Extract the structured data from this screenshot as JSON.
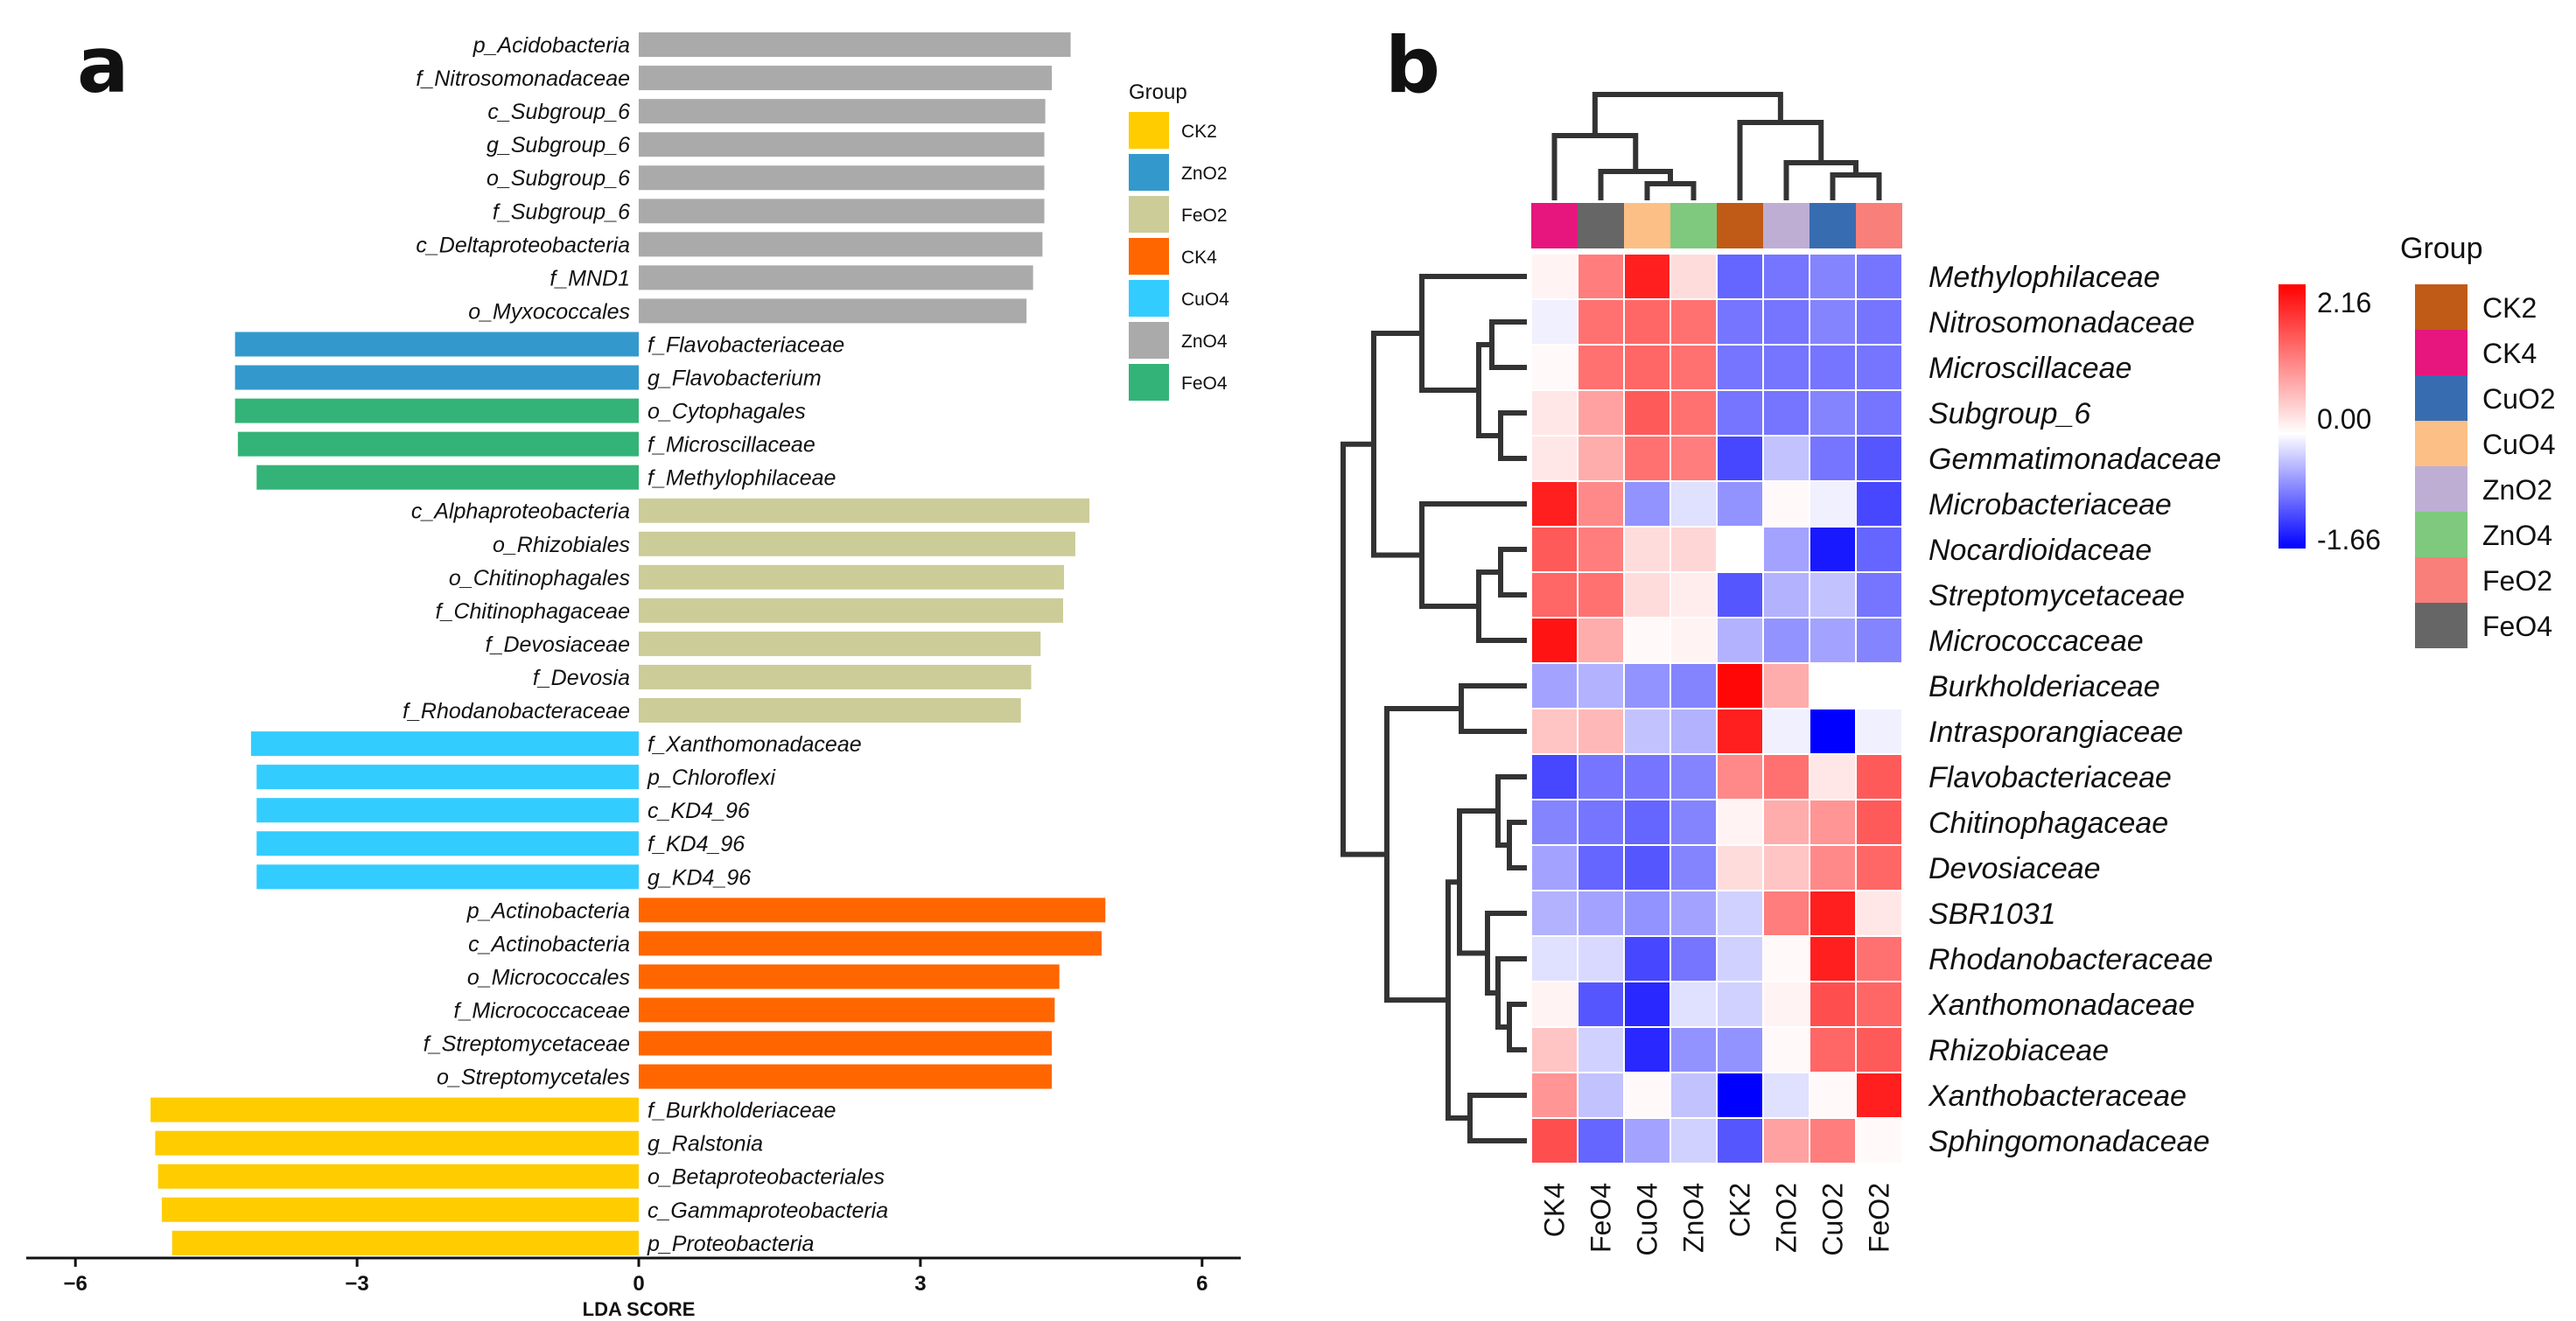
{
  "chart_data": [
    {
      "panel": "a",
      "type": "bar",
      "orientation": "horizontal",
      "xlabel": "LDA SCORE",
      "xlim": [
        -6,
        6.4
      ],
      "xticks": [
        -6,
        -3,
        0,
        3,
        6
      ],
      "xtick_labels": [
        "−6",
        "−3",
        "0",
        "3",
        "6"
      ],
      "legend": {
        "title": "Group",
        "position": "right",
        "items": [
          {
            "name": "CK2",
            "color": "#FFCC00"
          },
          {
            "name": "ZnO2",
            "color": "#3399CC"
          },
          {
            "name": "FeO2",
            "color": "#CCCC99"
          },
          {
            "name": "CK4",
            "color": "#FF6600"
          },
          {
            "name": "CuO4",
            "color": "#33CCFF"
          },
          {
            "name": "ZnO4",
            "color": "#AAAAAA"
          },
          {
            "name": "FeO4",
            "color": "#33B377"
          }
        ]
      },
      "bars": [
        {
          "label": "p_Acidobacteria",
          "value": 4.6,
          "group": "ZnO4"
        },
        {
          "label": "f_Nitrosomonadaceae",
          "value": 4.4,
          "group": "ZnO4"
        },
        {
          "label": "c_Subgroup_6",
          "value": 4.33,
          "group": "ZnO4"
        },
        {
          "label": "g_Subgroup_6",
          "value": 4.32,
          "group": "ZnO4"
        },
        {
          "label": "o_Subgroup_6",
          "value": 4.32,
          "group": "ZnO4"
        },
        {
          "label": "f_Subgroup_6",
          "value": 4.32,
          "group": "ZnO4"
        },
        {
          "label": "c_Deltaproteobacteria",
          "value": 4.3,
          "group": "ZnO4"
        },
        {
          "label": "f_MND1",
          "value": 4.2,
          "group": "ZnO4"
        },
        {
          "label": "o_Myxococcales",
          "value": 4.13,
          "group": "ZnO4"
        },
        {
          "label": "f_Flavobacteriaceae",
          "value": -4.3,
          "group": "ZnO2"
        },
        {
          "label": "g_Flavobacterium",
          "value": -4.3,
          "group": "ZnO2"
        },
        {
          "label": "o_Cytophagales",
          "value": -4.3,
          "group": "FeO4"
        },
        {
          "label": "f_Microscillaceae",
          "value": -4.27,
          "group": "FeO4"
        },
        {
          "label": "f_Methylophilaceae",
          "value": -4.07,
          "group": "FeO4"
        },
        {
          "label": "c_Alphaproteobacteria",
          "value": 4.8,
          "group": "FeO2"
        },
        {
          "label": "o_Rhizobiales",
          "value": 4.65,
          "group": "FeO2"
        },
        {
          "label": "o_Chitinophagales",
          "value": 4.53,
          "group": "FeO2"
        },
        {
          "label": "f_Chitinophagaceae",
          "value": 4.52,
          "group": "FeO2"
        },
        {
          "label": "f_Devosiaceae",
          "value": 4.28,
          "group": "FeO2"
        },
        {
          "label": "f_Devosia",
          "value": 4.18,
          "group": "FeO2"
        },
        {
          "label": "f_Rhodanobacteraceae",
          "value": 4.07,
          "group": "FeO2"
        },
        {
          "label": "f_Xanthomonadaceae",
          "value": -4.13,
          "group": "CuO4"
        },
        {
          "label": "p_Chloroflexi",
          "value": -4.07,
          "group": "CuO4"
        },
        {
          "label": "c_KD4_96",
          "value": -4.07,
          "group": "CuO4"
        },
        {
          "label": "f_KD4_96",
          "value": -4.07,
          "group": "CuO4"
        },
        {
          "label": "g_KD4_96",
          "value": -4.07,
          "group": "CuO4"
        },
        {
          "label": "p_Actinobacteria",
          "value": 4.97,
          "group": "CK4"
        },
        {
          "label": "c_Actinobacteria",
          "value": 4.93,
          "group": "CK4"
        },
        {
          "label": "o_Micrococcales",
          "value": 4.48,
          "group": "CK4"
        },
        {
          "label": "f_Micrococcaceae",
          "value": 4.43,
          "group": "CK4"
        },
        {
          "label": "f_Streptomycetaceae",
          "value": 4.4,
          "group": "CK4"
        },
        {
          "label": "o_Streptomycetales",
          "value": 4.4,
          "group": "CK4"
        },
        {
          "label": "f_Burkholderiaceae",
          "value": -5.2,
          "group": "CK2"
        },
        {
          "label": "g_Ralstonia",
          "value": -5.15,
          "group": "CK2"
        },
        {
          "label": "o_Betaproteobacteriales",
          "value": -5.12,
          "group": "CK2"
        },
        {
          "label": "c_Gammaproteobacteria",
          "value": -5.08,
          "group": "CK2"
        },
        {
          "label": "p_Proteobacteria",
          "value": -4.97,
          "group": "CK2"
        }
      ]
    },
    {
      "panel": "b",
      "type": "heatmap",
      "columns": [
        "CK4",
        "FeO4",
        "CuO4",
        "ZnO4",
        "CK2",
        "ZnO2",
        "CuO2",
        "FeO2"
      ],
      "rows": [
        "Methylophilaceae",
        "Nitrosomonadaceae",
        "Microscillaceae",
        "Subgroup_6",
        "Gemmatimonadaceae",
        "Microbacteriaceae",
        "Nocardioidaceae",
        "Streptomycetaceae",
        "Micrococcaceae",
        "Burkholderiaceae",
        "Intrasporangiaceae",
        "Flavobacteriaceae",
        "Chitinophagaceae",
        "Devosiaceae",
        "SBR1031",
        "Rhodanobacteraceae",
        "Xanthomonadaceae",
        "Rhizobiaceae",
        "Xanthobacteraceae",
        "Sphingomonadaceae"
      ],
      "values": [
        [
          0.1,
          1.1,
          1.9,
          0.3,
          -1.0,
          -0.9,
          -0.8,
          -0.9
        ],
        [
          -0.1,
          1.2,
          1.3,
          1.2,
          -0.9,
          -0.9,
          -0.8,
          -0.9
        ],
        [
          0.05,
          1.2,
          1.3,
          1.2,
          -0.9,
          -0.9,
          -0.9,
          -0.9
        ],
        [
          0.2,
          0.8,
          1.4,
          1.2,
          -0.9,
          -0.9,
          -0.8,
          -0.9
        ],
        [
          0.2,
          0.7,
          1.2,
          1.1,
          -1.2,
          -0.4,
          -0.9,
          -1.1
        ],
        [
          1.9,
          1.0,
          -0.7,
          -0.2,
          -0.7,
          0.05,
          -0.1,
          -1.2
        ],
        [
          1.4,
          1.1,
          0.3,
          0.35,
          0.0,
          -0.6,
          -1.5,
          -1.0
        ],
        [
          1.3,
          1.2,
          0.3,
          0.15,
          -1.1,
          -0.5,
          -0.4,
          -0.9
        ],
        [
          2.0,
          0.7,
          0.05,
          0.1,
          -0.5,
          -0.7,
          -0.6,
          -0.8
        ],
        [
          -0.6,
          -0.5,
          -0.7,
          -0.8,
          2.1,
          0.7,
          0.0,
          0.0
        ],
        [
          0.5,
          0.6,
          -0.4,
          -0.5,
          1.9,
          -0.1,
          -1.66,
          -0.1
        ],
        [
          -1.2,
          -0.9,
          -0.9,
          -0.8,
          1.0,
          1.2,
          0.2,
          1.4
        ],
        [
          -0.8,
          -0.9,
          -1.0,
          -0.8,
          0.1,
          0.7,
          0.9,
          1.4
        ],
        [
          -0.6,
          -1.0,
          -1.1,
          -0.8,
          0.3,
          0.5,
          1.0,
          1.3
        ],
        [
          -0.5,
          -0.6,
          -0.7,
          -0.6,
          -0.3,
          1.1,
          1.9,
          0.2
        ],
        [
          -0.2,
          -0.25,
          -1.2,
          -0.9,
          -0.3,
          0.05,
          1.9,
          1.2
        ],
        [
          0.1,
          -1.1,
          -1.4,
          -0.2,
          -0.3,
          0.1,
          1.5,
          1.3
        ],
        [
          0.5,
          -0.3,
          -1.4,
          -0.7,
          -0.7,
          0.05,
          1.3,
          1.4
        ],
        [
          0.9,
          -0.4,
          0.05,
          -0.4,
          -1.66,
          -0.2,
          0.05,
          1.9
        ],
        [
          1.5,
          -1.0,
          -0.6,
          -0.3,
          -1.1,
          0.8,
          1.1,
          0.05
        ]
      ],
      "colorscale": {
        "min": -1.66,
        "mid": 0.0,
        "max": 2.16,
        "min_label": "-1.66",
        "mid_label": "0.00",
        "max_label": "2.16",
        "colors": [
          "#0000FF",
          "#FFFFFF",
          "#FF0000"
        ]
      },
      "column_annotation_colors": {
        "CK4": "#E7157E",
        "FeO4": "#666666",
        "CuO4": "#FCBF85",
        "ZnO4": "#7FC97F",
        "CK2": "#BF5B17",
        "ZnO2": "#BEAED4",
        "CuO2": "#386CB0",
        "FeO2": "#F87F7A"
      },
      "legend": {
        "title": "Group",
        "items": [
          {
            "name": "CK2",
            "color": "#BF5B17"
          },
          {
            "name": "CK4",
            "color": "#E7157E"
          },
          {
            "name": "CuO2",
            "color": "#386CB0"
          },
          {
            "name": "CuO4",
            "color": "#FCBF85"
          },
          {
            "name": "ZnO2",
            "color": "#BEAED4"
          },
          {
            "name": "ZnO4",
            "color": "#7FC97F"
          },
          {
            "name": "FeO2",
            "color": "#F87F7A"
          },
          {
            "name": "FeO4",
            "color": "#666666"
          }
        ]
      },
      "col_dendrogram_merges": [
        [
          "ZnO4",
          "CuO4"
        ],
        [
          "FeO4",
          "CuO4+ZnO4"
        ],
        [
          "CK4",
          "FeO4+CuO4+ZnO4"
        ],
        [
          "CuO2",
          "FeO2"
        ],
        [
          "ZnO2",
          "CuO2+FeO2"
        ],
        [
          "CK2",
          "ZnO2+CuO2+FeO2"
        ],
        [
          "all-left",
          "all-right"
        ]
      ],
      "row_dendrogram_merges": "hierarchical clustering of 20 families"
    }
  ],
  "panel_labels": {
    "a": "a",
    "b": "b"
  }
}
